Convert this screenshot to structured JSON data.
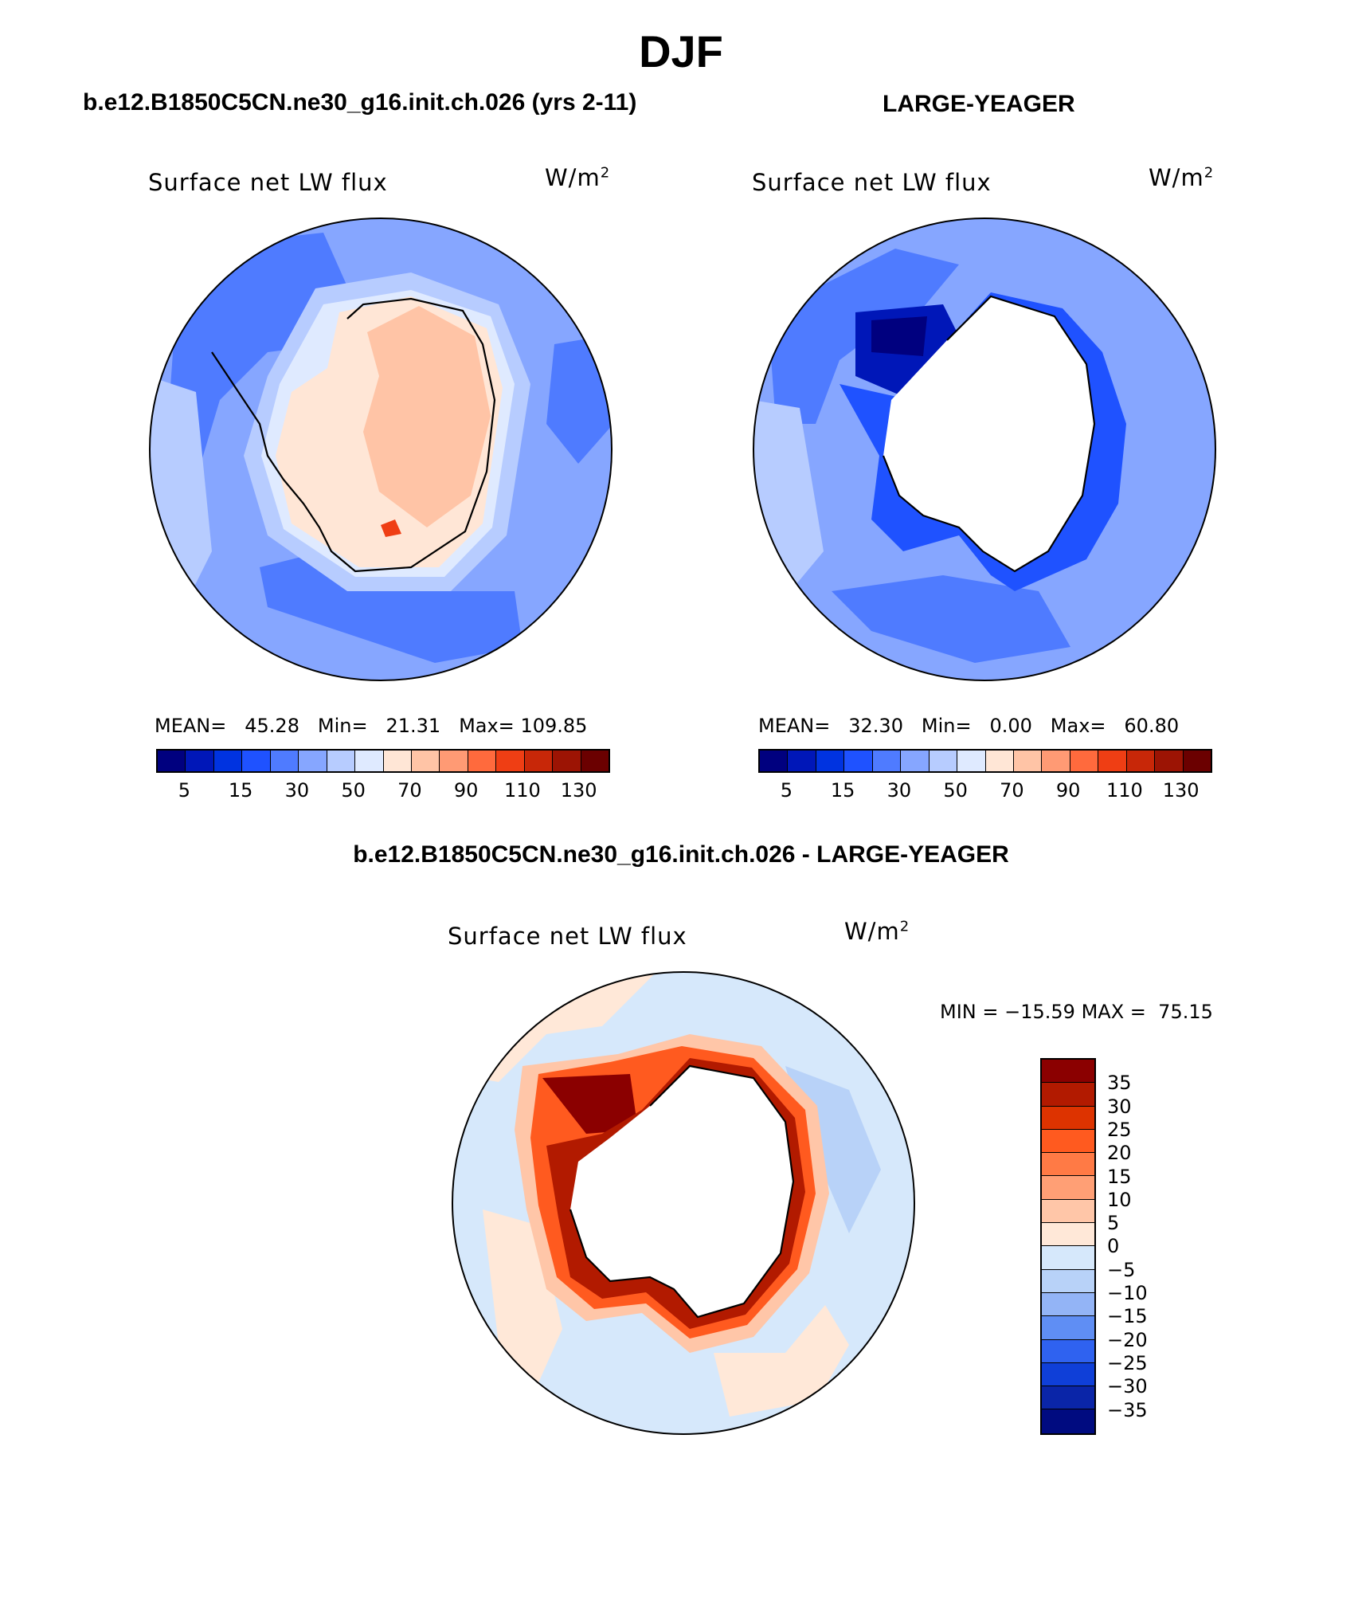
{
  "title": "DJF",
  "panels": [
    {
      "case_title": "b.e12.B1850C5CN.ne30_g16.init.ch.026 (yrs 2-11)",
      "variable": "Surface net LW flux",
      "units": "W/m",
      "units_exp": "2",
      "stats": {
        "mean_label": "MEAN=",
        "mean": "45.28",
        "min_label": "Min=",
        "min": "21.31",
        "max_label": "Max=",
        "max": "109.85"
      }
    },
    {
      "case_title": "LARGE-YEAGER",
      "variable": "Surface net LW flux",
      "units": "W/m",
      "units_exp": "2",
      "stats": {
        "mean_label": "MEAN=",
        "mean": "32.30",
        "min_label": "Min=",
        "min": "0.00",
        "max_label": "Max=",
        "max": "60.80"
      }
    }
  ],
  "abs_colorbar": {
    "colors": [
      "#00007f",
      "#0017b8",
      "#0033e0",
      "#1f52ff",
      "#4f7bff",
      "#86a6ff",
      "#b7ccff",
      "#dfeaff",
      "#ffe6d6",
      "#ffc4a6",
      "#ff9a74",
      "#ff6a3d",
      "#ef3e14",
      "#c82708",
      "#9c1404",
      "#6b0000"
    ],
    "labels": [
      "5",
      "15",
      "30",
      "50",
      "70",
      "90",
      "110",
      "130"
    ]
  },
  "diff_panel": {
    "title": "b.e12.B1850C5CN.ne30_g16.init.ch.026 - LARGE-YEAGER",
    "variable": "Surface net LW flux",
    "units": "W/m",
    "units_exp": "2",
    "minmax": {
      "min_label": "MIN =",
      "min": "−15.59",
      "max_label": "MAX =",
      "max": "75.15"
    }
  },
  "diff_colorbar": {
    "colors": [
      "#8b0000",
      "#b21a00",
      "#dd3300",
      "#ff5a1f",
      "#ff7a45",
      "#ff9f75",
      "#ffc6a8",
      "#ffe8d8",
      "#d6e8fb",
      "#b8d2f8",
      "#93b4f6",
      "#5f8ef4",
      "#2f62f0",
      "#0f3fd8",
      "#0a25a8",
      "#000b80"
    ],
    "labels": [
      "35",
      "30",
      "25",
      "20",
      "15",
      "10",
      "5",
      "0",
      "−5",
      "−10",
      "−15",
      "−20",
      "−25",
      "−30",
      "−35"
    ]
  },
  "map_colors": {
    "blue_light": "#b7ccff",
    "blue_mid": "#86a6ff",
    "blue": "#4f7bff",
    "blue_dark": "#1f52ff",
    "blue_deep": "#0017b8",
    "peach": "#ffe6d6",
    "salmon": "#ffc4a6",
    "red": "#9c1404",
    "diff_red": "#c81e0a",
    "diff_bg": "#d6e8fb",
    "diff_pos": "#ffe8d8"
  }
}
